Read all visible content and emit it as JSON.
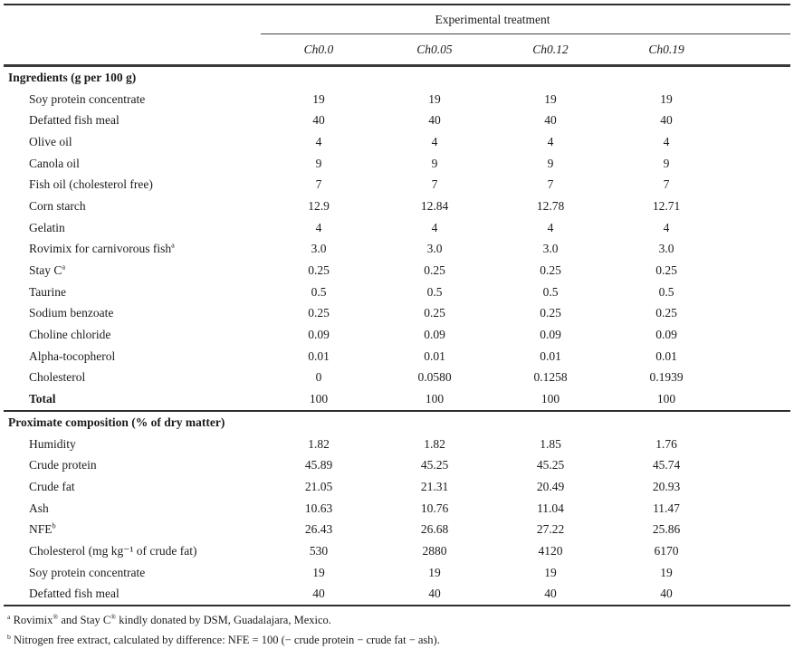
{
  "colors": {
    "background": "#ffffff",
    "text": "#1b1b1b",
    "rule_thick": "#3a3a3a",
    "rule_dark": "#2e2e2e",
    "rule_thin": "#444444"
  },
  "table": {
    "spanner": "Experimental treatment",
    "columns": [
      "Ch0.0",
      "Ch0.05",
      "Ch0.12",
      "Ch0.19"
    ],
    "sections": [
      {
        "header": "Ingredients (g per 100 g)",
        "rows": [
          {
            "label": "Soy protein concentrate",
            "values": [
              "19",
              "19",
              "19",
              "19"
            ]
          },
          {
            "label": "Defatted fish meal",
            "values": [
              "40",
              "40",
              "40",
              "40"
            ]
          },
          {
            "label": "Olive oil",
            "values": [
              "4",
              "4",
              "4",
              "4"
            ]
          },
          {
            "label": "Canola oil",
            "values": [
              "9",
              "9",
              "9",
              "9"
            ]
          },
          {
            "label": "Fish oil (cholesterol free)",
            "values": [
              "7",
              "7",
              "7",
              "7"
            ]
          },
          {
            "label": "Corn starch",
            "values": [
              "12.9",
              "12.84",
              "12.78",
              "12.71"
            ]
          },
          {
            "label": "Gelatin",
            "values": [
              "4",
              "4",
              "4",
              "4"
            ]
          },
          {
            "label": "Rovimix for carnivorous fish",
            "sup": "a",
            "values": [
              "3.0",
              "3.0",
              "3.0",
              "3.0"
            ]
          },
          {
            "label": "Stay C",
            "sup": "a",
            "values": [
              "0.25",
              "0.25",
              "0.25",
              "0.25"
            ]
          },
          {
            "label": "Taurine",
            "values": [
              "0.5",
              "0.5",
              "0.5",
              "0.5"
            ]
          },
          {
            "label": "Sodium benzoate",
            "values": [
              "0.25",
              "0.25",
              "0.25",
              "0.25"
            ]
          },
          {
            "label": "Choline chloride",
            "values": [
              "0.09",
              "0.09",
              "0.09",
              "0.09"
            ]
          },
          {
            "label": "Alpha-tocopherol",
            "values": [
              "0.01",
              "0.01",
              "0.01",
              "0.01"
            ]
          },
          {
            "label": "Cholesterol",
            "values": [
              "0",
              "0.0580",
              "0.1258",
              "0.1939"
            ]
          },
          {
            "label": "Total",
            "bold": true,
            "values": [
              "100",
              "100",
              "100",
              "100"
            ]
          }
        ]
      },
      {
        "header": "Proximate composition (% of dry matter)",
        "rows": [
          {
            "label": "Humidity",
            "values": [
              "1.82",
              "1.82",
              "1.85",
              "1.76"
            ]
          },
          {
            "label": "Crude protein",
            "values": [
              "45.89",
              "45.25",
              "45.25",
              "45.74"
            ]
          },
          {
            "label": "Crude fat",
            "values": [
              "21.05",
              "21.31",
              "20.49",
              "20.93"
            ]
          },
          {
            "label": "Ash",
            "values": [
              "10.63",
              "10.76",
              "11.04",
              "11.47"
            ]
          },
          {
            "label": "NFE",
            "sup": "b",
            "values": [
              "26.43",
              "26.68",
              "27.22",
              "25.86"
            ]
          },
          {
            "label": "Cholesterol (mg kg⁻¹ of crude fat)",
            "values": [
              "530",
              "2880",
              "4120",
              "6170"
            ]
          },
          {
            "label": "Soy protein concentrate",
            "values": [
              "19",
              "19",
              "19",
              "19"
            ]
          },
          {
            "label": "Defatted fish meal",
            "values": [
              "40",
              "40",
              "40",
              "40"
            ]
          }
        ]
      }
    ],
    "footnotes": [
      {
        "marker": "a",
        "segments": [
          {
            "text": "Rovimix"
          },
          {
            "sup": "®"
          },
          {
            "text": " and Stay C"
          },
          {
            "sup": "®"
          },
          {
            "text": "  kindly donated by DSM, Guadalajara, Mexico."
          }
        ]
      },
      {
        "marker": "b",
        "segments": [
          {
            "text": "Nitrogen free extract, calculated by difference: NFE = 100 (− crude protein − crude fat − ash)."
          }
        ]
      }
    ]
  }
}
